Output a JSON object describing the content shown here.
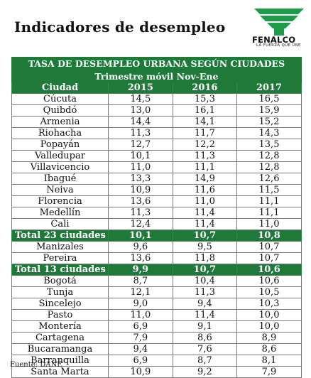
{
  "title": "Indicadores de desempleo",
  "logo": {
    "name": "FENALCO",
    "tagline": "LA FUERZA QUE UNE"
  },
  "table": {
    "heading": "TASA DE DESEMPLEO URBANA SEGÚN CIUDADES",
    "subheading": "Trimestre móvil Nov-Ene",
    "columns": [
      "Ciudad",
      "2015",
      "2016",
      "2017"
    ],
    "rows": [
      {
        "city": "Cúcuta",
        "v": [
          "14,5",
          "15,3",
          "16,5"
        ],
        "total": false
      },
      {
        "city": "Quibdó",
        "v": [
          "13,0",
          "16,1",
          "15,9"
        ],
        "total": false
      },
      {
        "city": "Armenia",
        "v": [
          "14,4",
          "14,1",
          "15,2"
        ],
        "total": false
      },
      {
        "city": "Riohacha",
        "v": [
          "11,3",
          "11,7",
          "14,3"
        ],
        "total": false
      },
      {
        "city": "Popayán",
        "v": [
          "12,7",
          "12,2",
          "13,5"
        ],
        "total": false
      },
      {
        "city": "Valledupar",
        "v": [
          "10,1",
          "11,3",
          "12,8"
        ],
        "total": false
      },
      {
        "city": "Villavicencio",
        "v": [
          "11,0",
          "11,1",
          "12,8"
        ],
        "total": false
      },
      {
        "city": "Ibagué",
        "v": [
          "13,3",
          "14,9",
          "12,6"
        ],
        "total": false
      },
      {
        "city": "Neiva",
        "v": [
          "10,9",
          "11,6",
          "11,5"
        ],
        "total": false
      },
      {
        "city": "Florencia",
        "v": [
          "13,6",
          "11,0",
          "11,1"
        ],
        "total": false
      },
      {
        "city": "Medellín",
        "v": [
          "11,3",
          "11,4",
          "11,1"
        ],
        "total": false
      },
      {
        "city": "Cali",
        "v": [
          "12,4",
          "11,4",
          "11,0"
        ],
        "total": false
      },
      {
        "city": "Total 23 ciudades",
        "v": [
          "10,1",
          "10,7",
          "10,8"
        ],
        "total": true
      },
      {
        "city": "Manizales",
        "v": [
          "9,6",
          "9,5",
          "10,7"
        ],
        "total": false
      },
      {
        "city": "Pereira",
        "v": [
          "13,6",
          "11,8",
          "10,7"
        ],
        "total": false
      },
      {
        "city": "Total 13 ciudades",
        "v": [
          "9,9",
          "10,7",
          "10,6"
        ],
        "total": true
      },
      {
        "city": "Bogotá",
        "v": [
          "8,7",
          "10,4",
          "10,6"
        ],
        "total": false
      },
      {
        "city": "Tunja",
        "v": [
          "12,1",
          "11,3",
          "10,5"
        ],
        "total": false
      },
      {
        "city": "Sincelejo",
        "v": [
          "9,0",
          "9,4",
          "10,3"
        ],
        "total": false
      },
      {
        "city": "Pasto",
        "v": [
          "11,0",
          "11,4",
          "10,0"
        ],
        "total": false
      },
      {
        "city": "Montería",
        "v": [
          "6,9",
          "9,1",
          "10,0"
        ],
        "total": false
      },
      {
        "city": "Cartagena",
        "v": [
          "7,9",
          "8,6",
          "8,9"
        ],
        "total": false
      },
      {
        "city": "Bucaramanga",
        "v": [
          "9,4",
          "7,6",
          "8,6"
        ],
        "total": false
      },
      {
        "city": "Barranquilla",
        "v": [
          "6,9",
          "8,7",
          "8,1"
        ],
        "total": false
      },
      {
        "city": "Santa Marta",
        "v": [
          "10,9",
          "9,2",
          "7,9"
        ],
        "total": false
      }
    ]
  },
  "source": "Fuente: DANE",
  "colors": {
    "header_green": "#1f7a3a",
    "logo_green": "#1f9a4a"
  }
}
